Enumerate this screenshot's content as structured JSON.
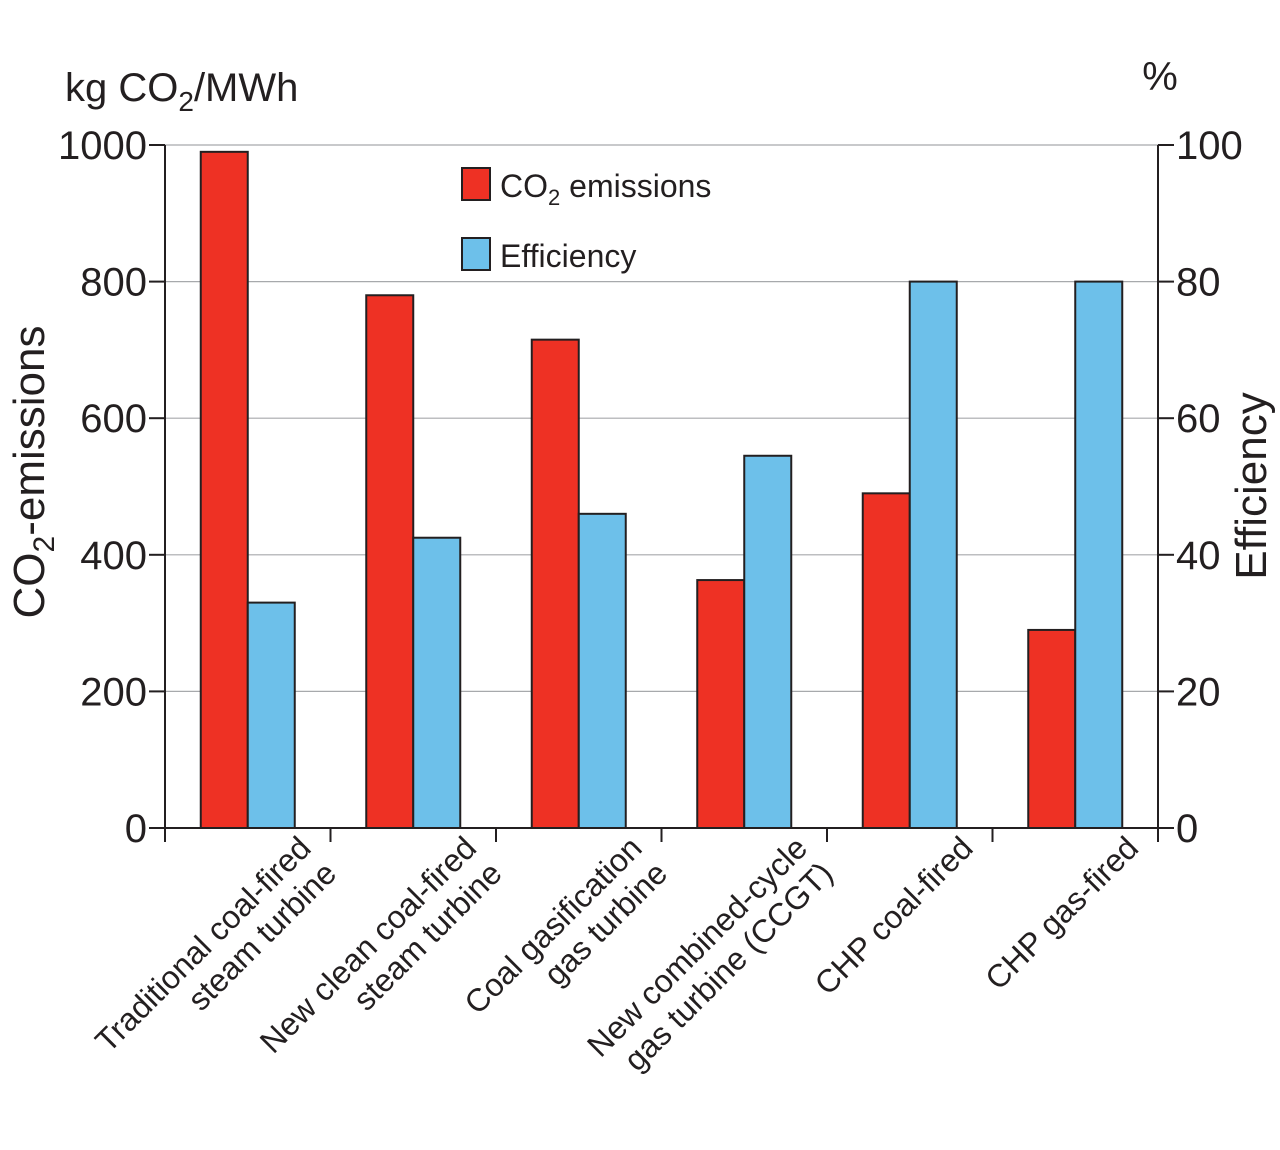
{
  "chart_data": {
    "type": "bar",
    "categories": [
      [
        "Traditional coal-fired",
        "steam turbine"
      ],
      [
        "New clean coal-fired",
        "steam turbine"
      ],
      [
        "Coal gasification",
        "gas turbine"
      ],
      [
        "New combined-cycle",
        "gas turbine (CCGT)"
      ],
      [
        "CHP coal-fired"
      ],
      [
        "CHP gas-fired"
      ]
    ],
    "series": [
      {
        "name": "CO2 emissions",
        "legend_main": "CO",
        "legend_sub": "2",
        "legend_rest": " emissions",
        "axis": "left",
        "color": "#ee3124",
        "values": [
          990,
          780,
          715,
          363,
          490,
          290
        ]
      },
      {
        "name": "Efficiency",
        "axis": "right",
        "color": "#6dc0ea",
        "values": [
          33,
          42.5,
          46,
          54.5,
          80,
          80
        ]
      }
    ],
    "left_axis": {
      "unit_main": "kg CO",
      "unit_sub": "2",
      "unit_rest": "/MWh",
      "label_main": "CO",
      "label_sub": "2",
      "label_rest": "-emissions",
      "ylim": [
        0,
        1000
      ],
      "ticks": [
        0,
        200,
        400,
        600,
        800,
        1000
      ]
    },
    "right_axis": {
      "unit": "%",
      "label": "Efficiency",
      "ylim": [
        0,
        100
      ],
      "ticks": [
        0,
        20,
        40,
        60,
        80,
        100
      ]
    },
    "grid": true,
    "legend_position": "top-center"
  }
}
